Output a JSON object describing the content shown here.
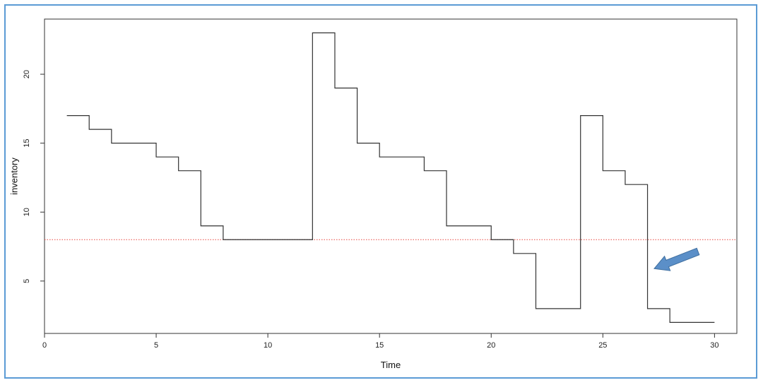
{
  "chart_data": {
    "type": "line",
    "step": true,
    "xlabel": "Time",
    "ylabel": "inventory",
    "xlim": [
      0,
      31
    ],
    "ylim": [
      1.2,
      24
    ],
    "x_ticks": [
      0,
      5,
      10,
      15,
      20,
      25,
      30
    ],
    "y_ticks": [
      5,
      10,
      15,
      20
    ],
    "series": [
      {
        "color": "#333333",
        "x": [
          1,
          2,
          3,
          4,
          5,
          6,
          7,
          8,
          9,
          10,
          11,
          12,
          13,
          14,
          15,
          16,
          17,
          18,
          19,
          20,
          21,
          22,
          23,
          24,
          25,
          26,
          27,
          28,
          29,
          30
        ],
        "values": [
          17,
          16,
          15,
          15,
          14,
          13,
          9,
          8,
          8,
          8,
          8,
          23,
          19,
          15,
          14,
          14,
          13,
          9,
          9,
          8,
          7,
          3,
          3,
          17,
          13,
          12,
          3,
          2,
          2,
          2
        ]
      }
    ],
    "reference_line": {
      "y": 8,
      "color": "#e8473f",
      "style": "dotted"
    },
    "annotation": {
      "type": "arrow",
      "color": "#5b8fc8",
      "points_to": [
        27.3,
        5.9
      ]
    }
  }
}
